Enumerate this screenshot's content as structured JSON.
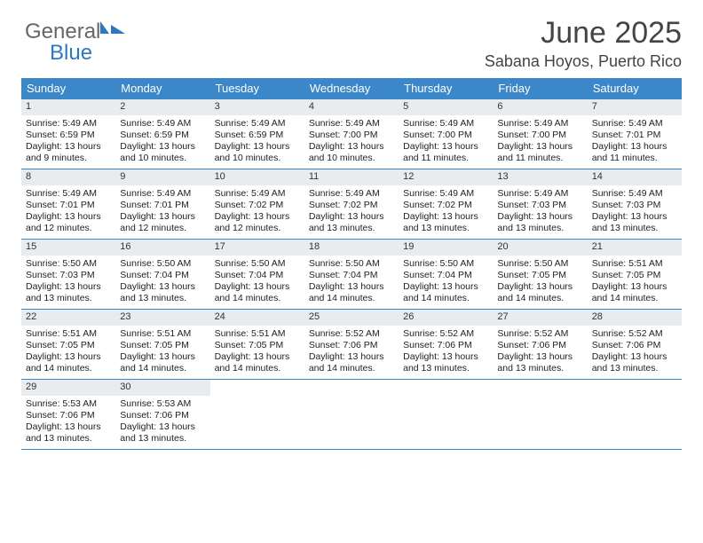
{
  "brand": {
    "line1": "General",
    "line2": "Blue"
  },
  "title": "June 2025",
  "location": "Sabana Hoyos, Puerto Rico",
  "colors": {
    "header_bg": "#3b87c8",
    "header_text": "#ffffff",
    "daynum_bg": "#e9ecef",
    "rule": "#3b87c8",
    "text": "#222222",
    "background": "#ffffff"
  },
  "weekdays": [
    "Sunday",
    "Monday",
    "Tuesday",
    "Wednesday",
    "Thursday",
    "Friday",
    "Saturday"
  ],
  "labels": {
    "sunrise": "Sunrise:",
    "sunset": "Sunset:",
    "daylight": "Daylight:"
  },
  "weeks": [
    [
      {
        "n": "1",
        "sr": "5:49 AM",
        "ss": "6:59 PM",
        "dl": "13 hours and 9 minutes."
      },
      {
        "n": "2",
        "sr": "5:49 AM",
        "ss": "6:59 PM",
        "dl": "13 hours and 10 minutes."
      },
      {
        "n": "3",
        "sr": "5:49 AM",
        "ss": "6:59 PM",
        "dl": "13 hours and 10 minutes."
      },
      {
        "n": "4",
        "sr": "5:49 AM",
        "ss": "7:00 PM",
        "dl": "13 hours and 10 minutes."
      },
      {
        "n": "5",
        "sr": "5:49 AM",
        "ss": "7:00 PM",
        "dl": "13 hours and 11 minutes."
      },
      {
        "n": "6",
        "sr": "5:49 AM",
        "ss": "7:00 PM",
        "dl": "13 hours and 11 minutes."
      },
      {
        "n": "7",
        "sr": "5:49 AM",
        "ss": "7:01 PM",
        "dl": "13 hours and 11 minutes."
      }
    ],
    [
      {
        "n": "8",
        "sr": "5:49 AM",
        "ss": "7:01 PM",
        "dl": "13 hours and 12 minutes."
      },
      {
        "n": "9",
        "sr": "5:49 AM",
        "ss": "7:01 PM",
        "dl": "13 hours and 12 minutes."
      },
      {
        "n": "10",
        "sr": "5:49 AM",
        "ss": "7:02 PM",
        "dl": "13 hours and 12 minutes."
      },
      {
        "n": "11",
        "sr": "5:49 AM",
        "ss": "7:02 PM",
        "dl": "13 hours and 13 minutes."
      },
      {
        "n": "12",
        "sr": "5:49 AM",
        "ss": "7:02 PM",
        "dl": "13 hours and 13 minutes."
      },
      {
        "n": "13",
        "sr": "5:49 AM",
        "ss": "7:03 PM",
        "dl": "13 hours and 13 minutes."
      },
      {
        "n": "14",
        "sr": "5:49 AM",
        "ss": "7:03 PM",
        "dl": "13 hours and 13 minutes."
      }
    ],
    [
      {
        "n": "15",
        "sr": "5:50 AM",
        "ss": "7:03 PM",
        "dl": "13 hours and 13 minutes."
      },
      {
        "n": "16",
        "sr": "5:50 AM",
        "ss": "7:04 PM",
        "dl": "13 hours and 13 minutes."
      },
      {
        "n": "17",
        "sr": "5:50 AM",
        "ss": "7:04 PM",
        "dl": "13 hours and 14 minutes."
      },
      {
        "n": "18",
        "sr": "5:50 AM",
        "ss": "7:04 PM",
        "dl": "13 hours and 14 minutes."
      },
      {
        "n": "19",
        "sr": "5:50 AM",
        "ss": "7:04 PM",
        "dl": "13 hours and 14 minutes."
      },
      {
        "n": "20",
        "sr": "5:50 AM",
        "ss": "7:05 PM",
        "dl": "13 hours and 14 minutes."
      },
      {
        "n": "21",
        "sr": "5:51 AM",
        "ss": "7:05 PM",
        "dl": "13 hours and 14 minutes."
      }
    ],
    [
      {
        "n": "22",
        "sr": "5:51 AM",
        "ss": "7:05 PM",
        "dl": "13 hours and 14 minutes."
      },
      {
        "n": "23",
        "sr": "5:51 AM",
        "ss": "7:05 PM",
        "dl": "13 hours and 14 minutes."
      },
      {
        "n": "24",
        "sr": "5:51 AM",
        "ss": "7:05 PM",
        "dl": "13 hours and 14 minutes."
      },
      {
        "n": "25",
        "sr": "5:52 AM",
        "ss": "7:06 PM",
        "dl": "13 hours and 14 minutes."
      },
      {
        "n": "26",
        "sr": "5:52 AM",
        "ss": "7:06 PM",
        "dl": "13 hours and 13 minutes."
      },
      {
        "n": "27",
        "sr": "5:52 AM",
        "ss": "7:06 PM",
        "dl": "13 hours and 13 minutes."
      },
      {
        "n": "28",
        "sr": "5:52 AM",
        "ss": "7:06 PM",
        "dl": "13 hours and 13 minutes."
      }
    ],
    [
      {
        "n": "29",
        "sr": "5:53 AM",
        "ss": "7:06 PM",
        "dl": "13 hours and 13 minutes."
      },
      {
        "n": "30",
        "sr": "5:53 AM",
        "ss": "7:06 PM",
        "dl": "13 hours and 13 minutes."
      },
      {
        "empty": true
      },
      {
        "empty": true
      },
      {
        "empty": true
      },
      {
        "empty": true
      },
      {
        "empty": true
      }
    ]
  ]
}
